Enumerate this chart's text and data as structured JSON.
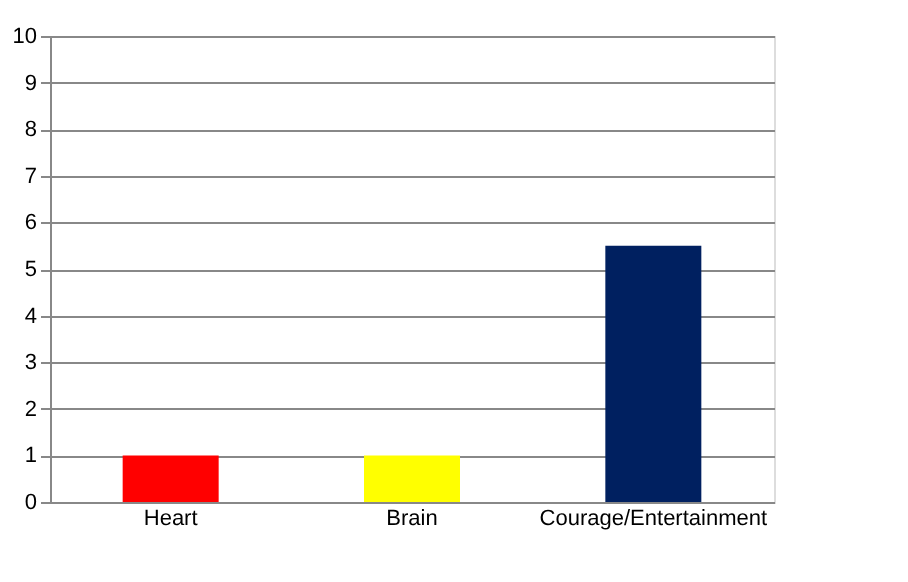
{
  "chart_data": {
    "type": "bar",
    "categories": [
      "Heart",
      "Brain",
      "Courage/Entertainment"
    ],
    "values": [
      1,
      1,
      5.5
    ],
    "colors": [
      "#ff0000",
      "#ffff00",
      "#002060"
    ],
    "ylim": [
      0,
      10
    ],
    "yticks": [
      0,
      1,
      2,
      3,
      4,
      5,
      6,
      7,
      8,
      9,
      10
    ],
    "grid": "y"
  }
}
